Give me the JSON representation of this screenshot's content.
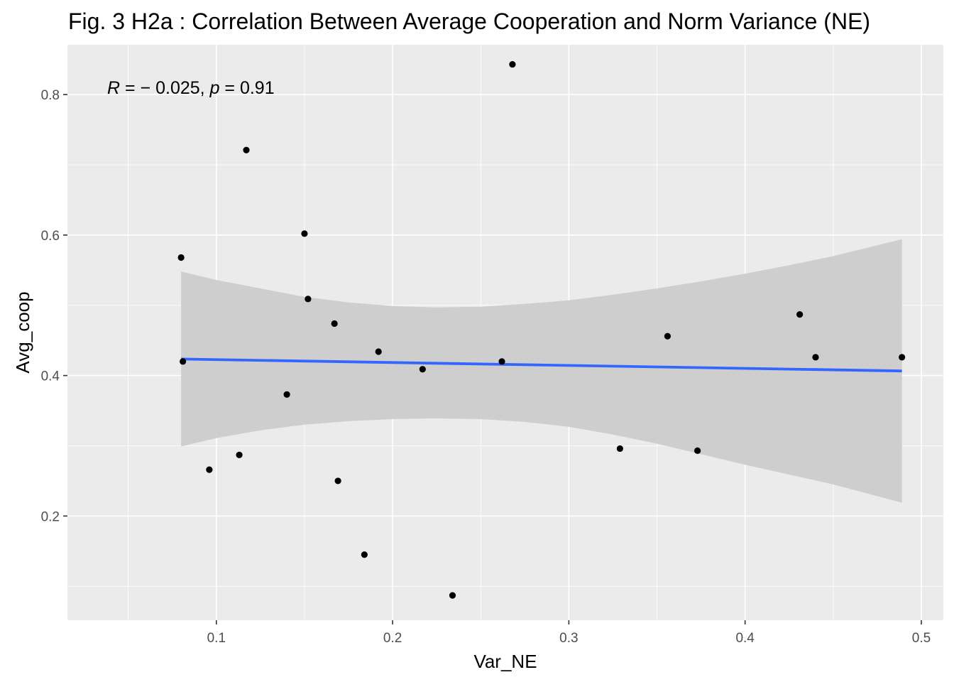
{
  "chart_data": {
    "type": "scatter",
    "title": "Fig. 3 H2a : Correlation Between Average Cooperation and Norm Variance (NE)",
    "xlabel": "Var_NE",
    "ylabel": "Avg_coop",
    "xlim": [
      0.0155,
      0.5125
    ],
    "ylim": [
      0.0517,
      0.8709
    ],
    "x_ticks": [
      0.1,
      0.2,
      0.3,
      0.4,
      0.5
    ],
    "x_tick_labels": [
      "0.1",
      "0.2",
      "0.3",
      "0.4",
      "0.5"
    ],
    "y_ticks": [
      0.2,
      0.4,
      0.6,
      0.8
    ],
    "y_tick_labels": [
      "0.2",
      "0.4",
      "0.6",
      "0.8"
    ],
    "grid": true,
    "annotation": {
      "r_symbol": "R",
      "r_value": " = − 0.025, ",
      "p_symbol": "p",
      "p_value": " = 0.91"
    },
    "points": [
      {
        "x": 0.08,
        "y": 0.568
      },
      {
        "x": 0.081,
        "y": 0.42
      },
      {
        "x": 0.096,
        "y": 0.266
      },
      {
        "x": 0.113,
        "y": 0.287
      },
      {
        "x": 0.117,
        "y": 0.721
      },
      {
        "x": 0.14,
        "y": 0.373
      },
      {
        "x": 0.15,
        "y": 0.602
      },
      {
        "x": 0.152,
        "y": 0.509
      },
      {
        "x": 0.167,
        "y": 0.474
      },
      {
        "x": 0.169,
        "y": 0.25
      },
      {
        "x": 0.184,
        "y": 0.145
      },
      {
        "x": 0.192,
        "y": 0.434
      },
      {
        "x": 0.217,
        "y": 0.409
      },
      {
        "x": 0.234,
        "y": 0.087
      },
      {
        "x": 0.262,
        "y": 0.42
      },
      {
        "x": 0.268,
        "y": 0.843
      },
      {
        "x": 0.329,
        "y": 0.296
      },
      {
        "x": 0.356,
        "y": 0.456
      },
      {
        "x": 0.373,
        "y": 0.293
      },
      {
        "x": 0.431,
        "y": 0.487
      },
      {
        "x": 0.44,
        "y": 0.426
      },
      {
        "x": 0.489,
        "y": 0.426
      }
    ],
    "fit_line": {
      "color": "#3366ff",
      "x": [
        0.08,
        0.489
      ],
      "y": [
        0.4235,
        0.4065
      ]
    },
    "confidence_band": {
      "fill": "#cccccc",
      "x": [
        0.08,
        0.1,
        0.125,
        0.15,
        0.175,
        0.2,
        0.225,
        0.25,
        0.275,
        0.3,
        0.325,
        0.35,
        0.375,
        0.4,
        0.425,
        0.45,
        0.489
      ],
      "upper": [
        0.548,
        0.536,
        0.524,
        0.512,
        0.504,
        0.499,
        0.497,
        0.498,
        0.502,
        0.507,
        0.515,
        0.524,
        0.534,
        0.545,
        0.557,
        0.57,
        0.594
      ],
      "lower": [
        0.299,
        0.311,
        0.322,
        0.33,
        0.335,
        0.338,
        0.339,
        0.338,
        0.334,
        0.327,
        0.316,
        0.303,
        0.288,
        0.273,
        0.259,
        0.245,
        0.219
      ]
    },
    "colors": {
      "panel_background": "#ebebeb",
      "grid_major": "#ffffff",
      "point": "#000000",
      "tick_label": "#4d4d4d"
    }
  }
}
